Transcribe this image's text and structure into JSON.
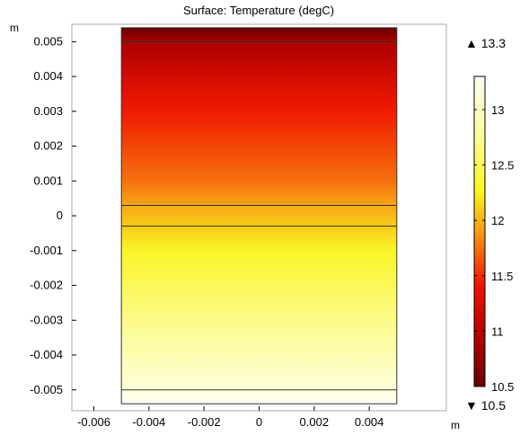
{
  "chart_data": {
    "type": "heatmap",
    "title": "Surface: Temperature (degC)",
    "x_unit": "m",
    "y_unit": "m",
    "xlim": [
      -0.0068,
      0.0068
    ],
    "ylim": [
      -0.0056,
      0.0055
    ],
    "x_ticks": [
      {
        "value": -0.006,
        "label": "-0.006"
      },
      {
        "value": -0.004,
        "label": "-0.004"
      },
      {
        "value": -0.002,
        "label": "-0.002"
      },
      {
        "value": 0,
        "label": "0"
      },
      {
        "value": 0.002,
        "label": "0.002"
      },
      {
        "value": 0.004,
        "label": "0.004"
      }
    ],
    "y_ticks": [
      {
        "value": 0.005,
        "label": "0.005"
      },
      {
        "value": 0.004,
        "label": "0.004"
      },
      {
        "value": 0.003,
        "label": "0.003"
      },
      {
        "value": 0.002,
        "label": "0.002"
      },
      {
        "value": 0.001,
        "label": "0.001"
      },
      {
        "value": 0,
        "label": "0"
      },
      {
        "value": -0.001,
        "label": "-0.001"
      },
      {
        "value": -0.002,
        "label": "-0.002"
      },
      {
        "value": -0.003,
        "label": "-0.003"
      },
      {
        "value": -0.004,
        "label": "-0.004"
      },
      {
        "value": -0.005,
        "label": "-0.005"
      }
    ],
    "domain": {
      "x": [
        -0.005,
        0.005
      ],
      "y": [
        -0.0054,
        0.0054
      ]
    },
    "boundary_lines_y": [
      0.005,
      0.0003,
      -0.0003,
      -0.005
    ],
    "temperature_profile": [
      {
        "y": 0.0054,
        "t": 10.5
      },
      {
        "y": 0.005,
        "t": 10.9
      },
      {
        "y": 0.004,
        "t": 11.2
      },
      {
        "y": 0.003,
        "t": 11.45
      },
      {
        "y": 0.002,
        "t": 11.6
      },
      {
        "y": 0.001,
        "t": 11.75
      },
      {
        "y": 0.0003,
        "t": 11.95
      },
      {
        "y": -0.0003,
        "t": 12.1
      },
      {
        "y": -0.001,
        "t": 12.3
      },
      {
        "y": -0.002,
        "t": 12.5
      },
      {
        "y": -0.003,
        "t": 12.7
      },
      {
        "y": -0.004,
        "t": 12.9
      },
      {
        "y": -0.005,
        "t": 13.15
      },
      {
        "y": -0.0054,
        "t": 13.3
      }
    ],
    "colorbar": {
      "min": 10.5,
      "max": 13.3,
      "ticks": [
        {
          "value": 13,
          "label": "13"
        },
        {
          "value": 12.5,
          "label": "12.5"
        },
        {
          "value": 12,
          "label": "12"
        },
        {
          "value": 11.5,
          "label": "11.5"
        },
        {
          "value": 11,
          "label": "11"
        },
        {
          "value": 10.5,
          "label": "10.5"
        }
      ],
      "max_marker": "▲ 13.3",
      "min_marker": "▼ 10.5",
      "colormap": "ThermalLight"
    },
    "grid": false
  }
}
